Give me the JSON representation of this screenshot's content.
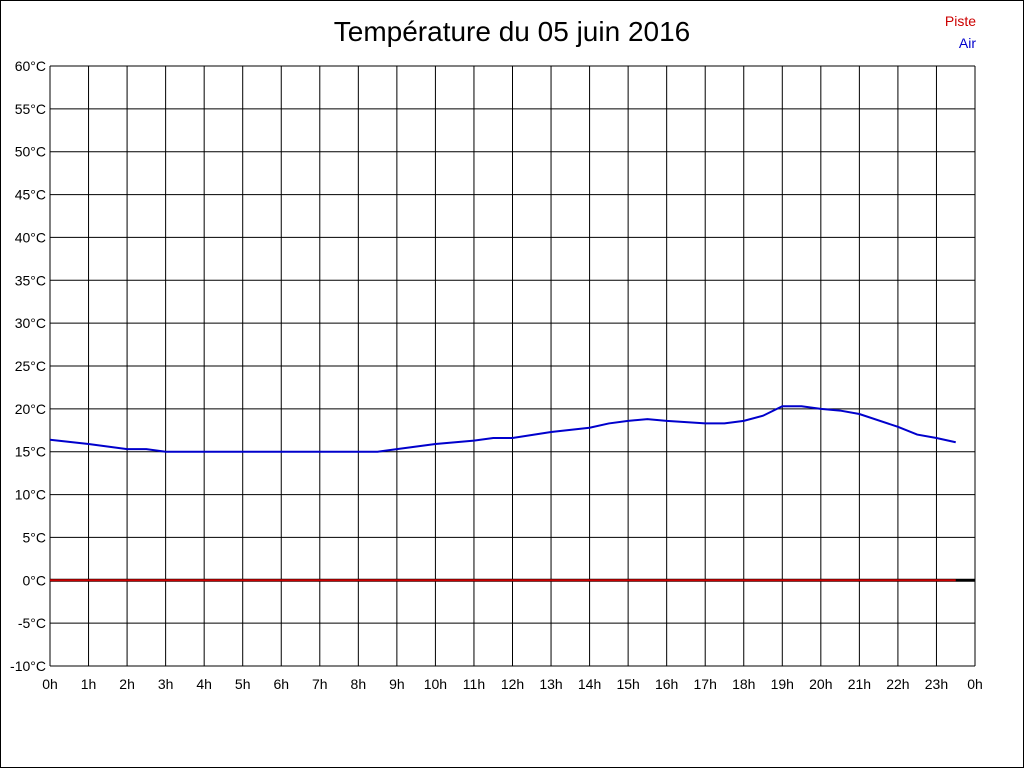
{
  "chart_data": {
    "type": "line",
    "title": "Température du 05 juin 2016",
    "x_ticks": [
      "0h",
      "1h",
      "2h",
      "3h",
      "4h",
      "5h",
      "6h",
      "7h",
      "8h",
      "9h",
      "10h",
      "11h",
      "12h",
      "13h",
      "14h",
      "15h",
      "16h",
      "17h",
      "18h",
      "19h",
      "20h",
      "21h",
      "22h",
      "23h",
      "0h"
    ],
    "y_ticks": [
      "60°C",
      "55°C",
      "50°C",
      "45°C",
      "40°C",
      "35°C",
      "30°C",
      "25°C",
      "20°C",
      "15°C",
      "10°C",
      "5°C",
      "0°C",
      "-5°C",
      "-10°C"
    ],
    "xlim": [
      0,
      24
    ],
    "ylim": [
      -10,
      60
    ],
    "grid": true,
    "legend_position": "top-right",
    "series": [
      {
        "name": "Piste",
        "color": "#cc0000",
        "x": [
          0,
          23.5
        ],
        "y": [
          0,
          0
        ]
      },
      {
        "name": "Air",
        "color": "#0000cc",
        "x": [
          0,
          1,
          2,
          2.5,
          3,
          4,
          5,
          6,
          7,
          8,
          8.5,
          9,
          10,
          11,
          11.5,
          12,
          13,
          14,
          14.5,
          15,
          15.5,
          16,
          17,
          17.5,
          18,
          18.5,
          19,
          19.5,
          20,
          20.5,
          21,
          22,
          22.5,
          23,
          23.5
        ],
        "y": [
          16.4,
          15.9,
          15.3,
          15.3,
          15.0,
          15.0,
          15.0,
          15.0,
          15.0,
          15.0,
          15.0,
          15.3,
          15.9,
          16.3,
          16.6,
          16.6,
          17.3,
          17.8,
          18.3,
          18.6,
          18.8,
          18.6,
          18.3,
          18.3,
          18.6,
          19.2,
          20.3,
          20.3,
          20.0,
          19.8,
          19.4,
          17.9,
          17.0,
          16.6,
          16.1
        ]
      }
    ]
  }
}
